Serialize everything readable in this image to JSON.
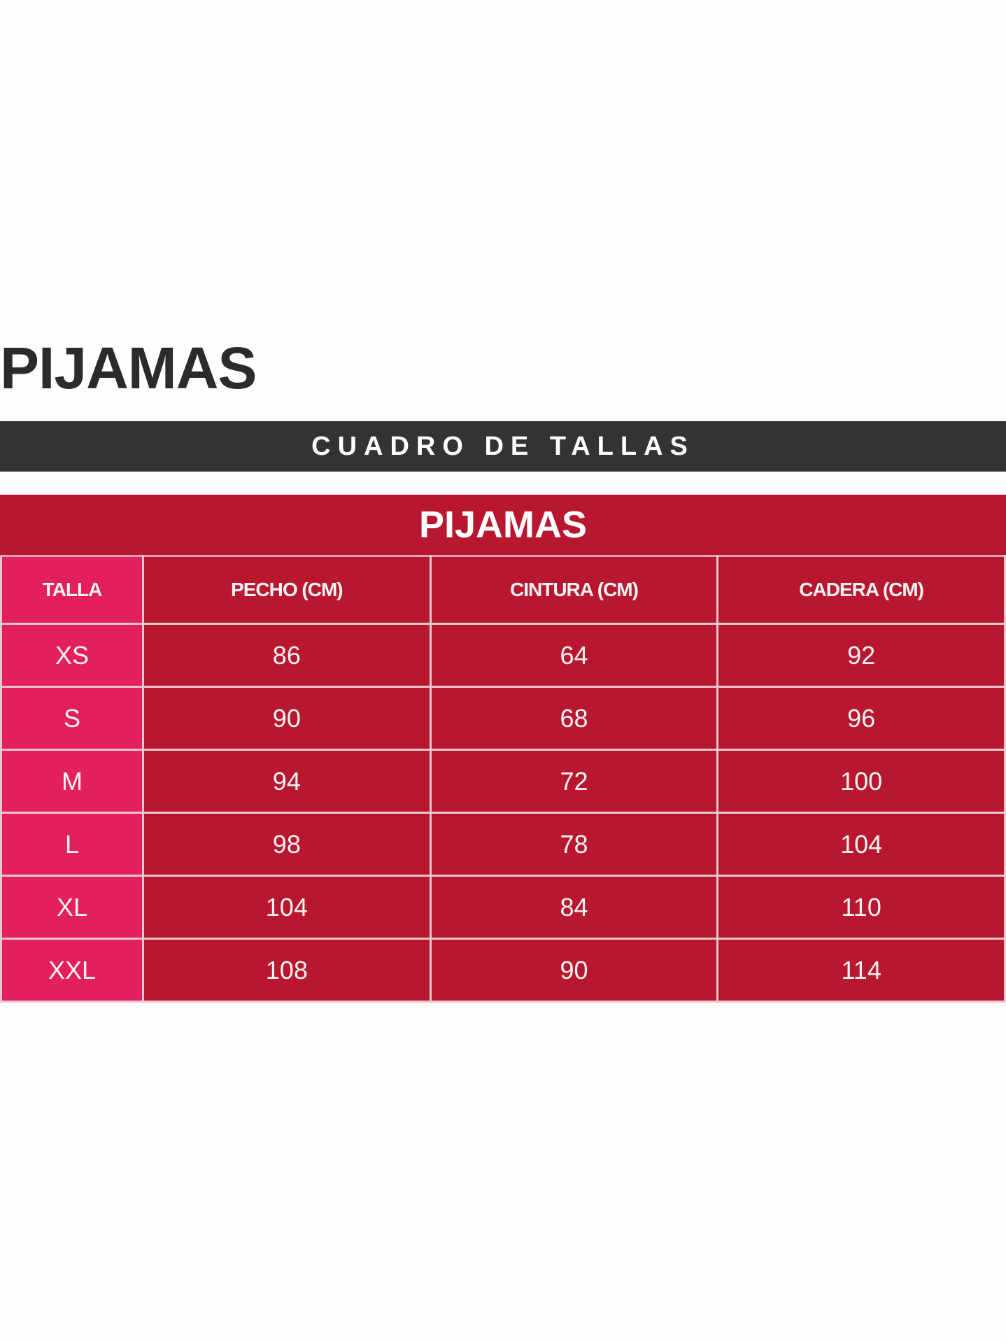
{
  "heading": "PIJAMAS",
  "banner": "CUADRO DE TALLAS",
  "table": {
    "title": "PIJAMAS",
    "headers": [
      "TALLA",
      "PECHO (CM)",
      "CINTURA (CM)",
      "CADERA (CM)"
    ],
    "rows": [
      [
        "XS",
        "86",
        "64",
        "92"
      ],
      [
        "S",
        "90",
        "68",
        "96"
      ],
      [
        "M",
        "94",
        "72",
        "100"
      ],
      [
        "L",
        "98",
        "78",
        "104"
      ],
      [
        "XL",
        "104",
        "84",
        "110"
      ],
      [
        "XXL",
        "108",
        "90",
        "114"
      ]
    ]
  },
  "colors": {
    "dark_bar": "#333333",
    "table_red": "#b8172f",
    "size_column_pink": "#e31f5c"
  }
}
